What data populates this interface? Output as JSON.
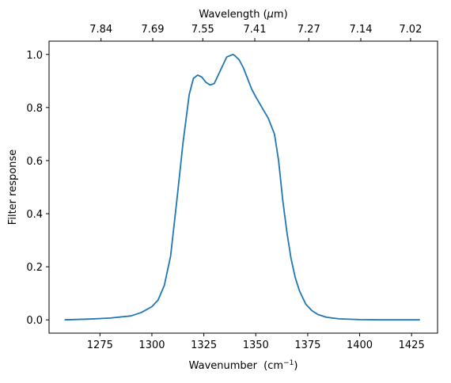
{
  "chart_data": {
    "type": "line",
    "xlabel": "Wavenumber",
    "xlabel_unit": "(cm",
    "xlabel_exponent": "−1",
    "xlabel_close": ")",
    "x2label_prefix": "Wavelength (",
    "x2label_mu": "μ",
    "x2label_suffix": "m)",
    "ylabel": "Filter response",
    "xlim": [
      1250.5,
      1437.5
    ],
    "ylim": [
      -0.05,
      1.05
    ],
    "xticks": [
      1275,
      1300,
      1325,
      1350,
      1375,
      1400,
      1425
    ],
    "xtick_labels": [
      "1275",
      "1300",
      "1325",
      "1350",
      "1375",
      "1400",
      "1425"
    ],
    "yticks": [
      0.0,
      0.2,
      0.4,
      0.6,
      0.8,
      1.0
    ],
    "ytick_labels": [
      "0.0",
      "0.2",
      "0.4",
      "0.6",
      "0.8",
      "1.0"
    ],
    "x2ticks_wavelength_um": [
      7.84,
      7.69,
      7.55,
      7.41,
      7.27,
      7.14,
      7.02
    ],
    "x2tick_labels": [
      "7.84",
      "7.69",
      "7.55",
      "7.41",
      "7.27",
      "7.14",
      "7.02"
    ],
    "grid": false,
    "line_color": "#1f77b4",
    "series": [
      {
        "x": [
          1258,
          1270,
          1280,
          1290,
          1295,
          1300,
          1303,
          1306,
          1309,
          1312,
          1315,
          1318,
          1320,
          1322,
          1324,
          1326,
          1328,
          1330,
          1333,
          1336,
          1339,
          1340,
          1342,
          1344,
          1346,
          1348,
          1350,
          1353,
          1356,
          1359,
          1361,
          1363,
          1365,
          1367,
          1369,
          1371,
          1374,
          1377,
          1380,
          1384,
          1390,
          1400,
          1410,
          1420,
          1429
        ],
        "y": [
          0.0,
          0.003,
          0.007,
          0.015,
          0.028,
          0.05,
          0.075,
          0.13,
          0.24,
          0.45,
          0.67,
          0.85,
          0.91,
          0.922,
          0.915,
          0.895,
          0.885,
          0.89,
          0.94,
          0.99,
          1.0,
          0.995,
          0.98,
          0.95,
          0.91,
          0.87,
          0.84,
          0.8,
          0.76,
          0.7,
          0.6,
          0.45,
          0.33,
          0.23,
          0.16,
          0.11,
          0.06,
          0.035,
          0.02,
          0.01,
          0.004,
          0.001,
          0.0,
          0.0,
          0.0
        ]
      }
    ]
  }
}
